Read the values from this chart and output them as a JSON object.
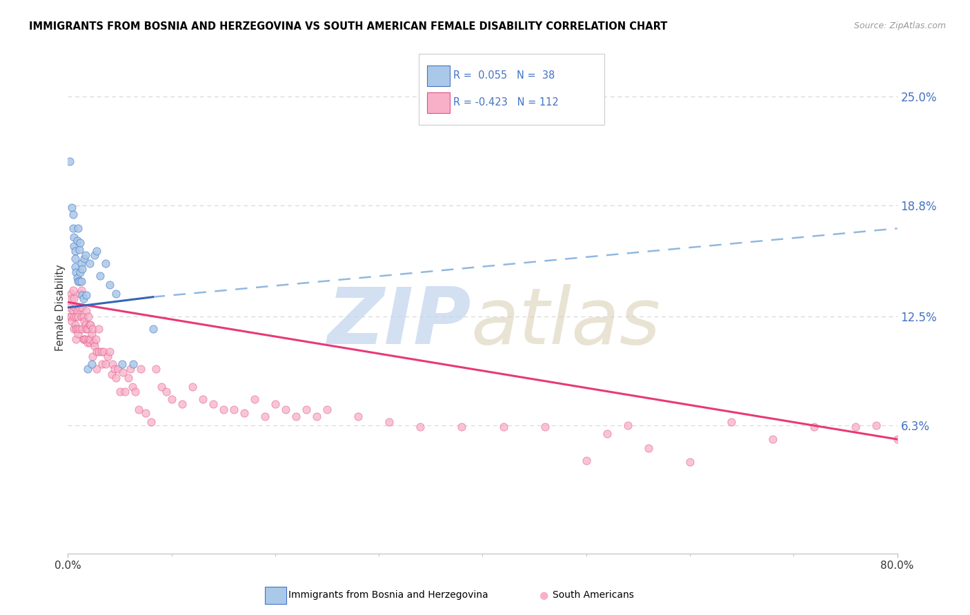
{
  "title": "IMMIGRANTS FROM BOSNIA AND HERZEGOVINA VS SOUTH AMERICAN FEMALE DISABILITY CORRELATION CHART",
  "source": "Source: ZipAtlas.com",
  "ylabel": "Female Disability",
  "ytick_vals": [
    0.0,
    0.063,
    0.125,
    0.188,
    0.25
  ],
  "ytick_labels": [
    "",
    "6.3%",
    "12.5%",
    "18.8%",
    "25.0%"
  ],
  "xlim": [
    0.0,
    0.8
  ],
  "ylim": [
    -0.01,
    0.27
  ],
  "color_bosnia_fill": "#aac8e8",
  "color_bosnia_edge": "#4472c4",
  "color_south_fill": "#f8b0c8",
  "color_south_edge": "#e05080",
  "color_line_bosnia_solid": "#3464b8",
  "color_line_bosnia_dashed": "#90b8e0",
  "color_line_south": "#e83878",
  "grid_color": "#d8d8d8",
  "axis_color": "#bbbbbb",
  "legend_label1": "R =  0.055   N =  38",
  "legend_label2": "R = -0.423   N = 112",
  "legend_text_color": "#4472c4",
  "bottom_label1": "Immigrants from Bosnia and Herzegovina",
  "bottom_label2": "South Americans",
  "watermark_zip_color": "#c0d4ec",
  "watermark_atlas_color": "#d8cdb0",
  "bosnia_x": [
    0.002,
    0.004,
    0.005,
    0.005,
    0.006,
    0.006,
    0.007,
    0.007,
    0.007,
    0.008,
    0.009,
    0.009,
    0.01,
    0.01,
    0.011,
    0.011,
    0.012,
    0.012,
    0.013,
    0.013,
    0.014,
    0.014,
    0.015,
    0.016,
    0.017,
    0.018,
    0.019,
    0.021,
    0.023,
    0.026,
    0.028,
    0.031,
    0.036,
    0.04,
    0.046,
    0.052,
    0.063,
    0.082
  ],
  "bosnia_y": [
    0.213,
    0.187,
    0.183,
    0.175,
    0.17,
    0.165,
    0.162,
    0.158,
    0.153,
    0.15,
    0.168,
    0.147,
    0.175,
    0.145,
    0.163,
    0.145,
    0.167,
    0.15,
    0.155,
    0.145,
    0.152,
    0.137,
    0.135,
    0.158,
    0.16,
    0.137,
    0.095,
    0.155,
    0.098,
    0.16,
    0.162,
    0.148,
    0.155,
    0.143,
    0.138,
    0.098,
    0.098,
    0.118
  ],
  "south_x": [
    0.002,
    0.002,
    0.003,
    0.003,
    0.004,
    0.004,
    0.005,
    0.005,
    0.006,
    0.006,
    0.006,
    0.007,
    0.007,
    0.008,
    0.008,
    0.008,
    0.009,
    0.009,
    0.01,
    0.01,
    0.011,
    0.011,
    0.012,
    0.012,
    0.013,
    0.013,
    0.014,
    0.014,
    0.015,
    0.015,
    0.016,
    0.016,
    0.017,
    0.017,
    0.018,
    0.018,
    0.019,
    0.019,
    0.02,
    0.02,
    0.021,
    0.021,
    0.022,
    0.022,
    0.023,
    0.024,
    0.024,
    0.025,
    0.026,
    0.027,
    0.028,
    0.028,
    0.03,
    0.03,
    0.032,
    0.033,
    0.034,
    0.036,
    0.038,
    0.04,
    0.042,
    0.043,
    0.045,
    0.046,
    0.048,
    0.05,
    0.053,
    0.055,
    0.058,
    0.06,
    0.062,
    0.065,
    0.068,
    0.07,
    0.075,
    0.08,
    0.085,
    0.09,
    0.095,
    0.1,
    0.11,
    0.12,
    0.13,
    0.14,
    0.15,
    0.16,
    0.17,
    0.18,
    0.19,
    0.2,
    0.21,
    0.22,
    0.23,
    0.24,
    0.25,
    0.28,
    0.31,
    0.34,
    0.38,
    0.42,
    0.46,
    0.5,
    0.52,
    0.54,
    0.56,
    0.6,
    0.64,
    0.68,
    0.72,
    0.76,
    0.78,
    0.8
  ],
  "south_y": [
    0.13,
    0.125,
    0.138,
    0.125,
    0.135,
    0.122,
    0.14,
    0.128,
    0.135,
    0.125,
    0.118,
    0.13,
    0.12,
    0.125,
    0.118,
    0.112,
    0.128,
    0.118,
    0.125,
    0.115,
    0.13,
    0.118,
    0.145,
    0.138,
    0.14,
    0.125,
    0.13,
    0.118,
    0.125,
    0.112,
    0.122,
    0.112,
    0.12,
    0.112,
    0.128,
    0.118,
    0.118,
    0.11,
    0.125,
    0.112,
    0.12,
    0.11,
    0.12,
    0.112,
    0.115,
    0.118,
    0.102,
    0.11,
    0.108,
    0.112,
    0.105,
    0.095,
    0.118,
    0.105,
    0.105,
    0.098,
    0.105,
    0.098,
    0.102,
    0.105,
    0.092,
    0.098,
    0.095,
    0.09,
    0.095,
    0.082,
    0.093,
    0.082,
    0.09,
    0.095,
    0.085,
    0.082,
    0.072,
    0.095,
    0.07,
    0.065,
    0.095,
    0.085,
    0.082,
    0.078,
    0.075,
    0.085,
    0.078,
    0.075,
    0.072,
    0.072,
    0.07,
    0.078,
    0.068,
    0.075,
    0.072,
    0.068,
    0.072,
    0.068,
    0.072,
    0.068,
    0.065,
    0.062,
    0.062,
    0.062,
    0.062,
    0.043,
    0.058,
    0.063,
    0.05,
    0.042,
    0.065,
    0.055,
    0.062,
    0.062,
    0.063,
    0.055
  ],
  "trendline_bosnia_x0": 0.0,
  "trendline_bosnia_y0": 0.13,
  "trendline_bosnia_x1": 0.082,
  "trendline_bosnia_y1": 0.136,
  "trendline_bosnia_dashed_x1": 0.8,
  "trendline_bosnia_dashed_y1": 0.175,
  "trendline_south_x0": 0.0,
  "trendline_south_y0": 0.133,
  "trendline_south_x1": 0.8,
  "trendline_south_y1": 0.055
}
